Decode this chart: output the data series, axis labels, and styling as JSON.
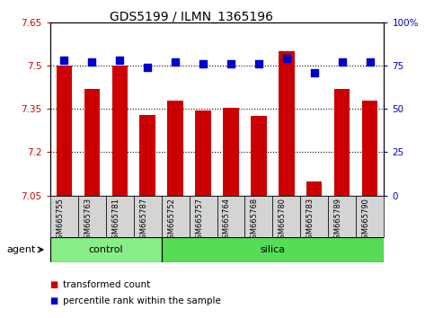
{
  "title": "GDS5199 / ILMN_1365196",
  "samples": [
    "GSM665755",
    "GSM665763",
    "GSM665781",
    "GSM665787",
    "GSM665752",
    "GSM665757",
    "GSM665764",
    "GSM665768",
    "GSM665780",
    "GSM665783",
    "GSM665789",
    "GSM665790"
  ],
  "transformed_count": [
    7.5,
    7.42,
    7.5,
    7.33,
    7.38,
    7.345,
    7.355,
    7.325,
    7.55,
    7.1,
    7.42,
    7.38
  ],
  "percentile_rank": [
    78,
    77,
    78,
    74,
    77,
    76,
    76,
    76,
    79,
    71,
    77,
    77
  ],
  "ylim_left": [
    7.05,
    7.65
  ],
  "ylim_right": [
    0,
    100
  ],
  "yticks_left": [
    7.05,
    7.2,
    7.35,
    7.5,
    7.65
  ],
  "yticks_right": [
    0,
    25,
    50,
    75,
    100
  ],
  "ytick_labels_left": [
    "7.05",
    "7.2",
    "7.35",
    "7.5",
    "7.65"
  ],
  "ytick_labels_right": [
    "0",
    "25",
    "50",
    "75",
    "100%"
  ],
  "bar_color": "#cc0000",
  "dot_color": "#0000cc",
  "bar_width": 0.55,
  "dot_size": 40,
  "control_color": "#88ee88",
  "silica_color": "#55dd55",
  "agent_label": "agent",
  "legend_bar_label": "transformed count",
  "legend_dot_label": "percentile rank within the sample",
  "n_control": 4,
  "n_silica": 8,
  "gridlines": [
    7.2,
    7.35,
    7.5
  ]
}
